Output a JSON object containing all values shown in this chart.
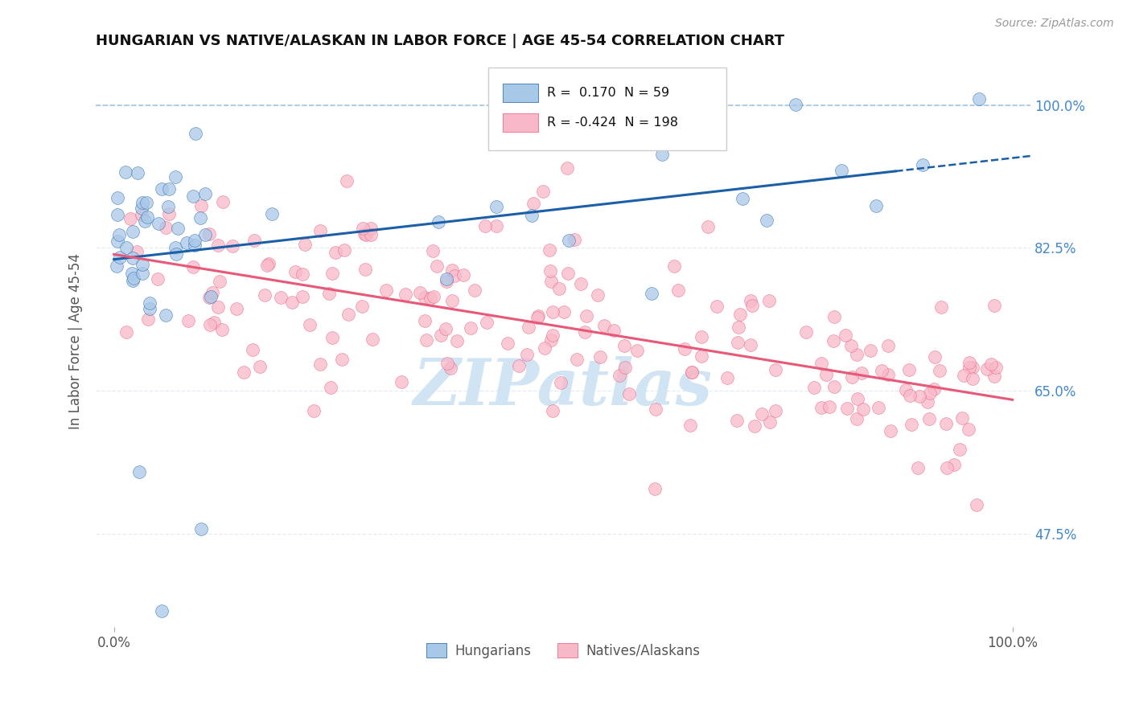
{
  "title": "HUNGARIAN VS NATIVE/ALASKAN IN LABOR FORCE | AGE 45-54 CORRELATION CHART",
  "source": "Source: ZipAtlas.com",
  "ylabel": "In Labor Force | Age 45-54",
  "xlim": [
    -0.02,
    1.02
  ],
  "ylim": [
    0.36,
    1.06
  ],
  "yticks": [
    0.475,
    0.65,
    0.825,
    1.0
  ],
  "ytick_labels": [
    "47.5%",
    "65.0%",
    "82.5%",
    "100.0%"
  ],
  "xtick_labels": [
    "0.0%",
    "100.0%"
  ],
  "xticks": [
    0.0,
    1.0
  ],
  "legend_blue_R": "0.170",
  "legend_blue_N": "59",
  "legend_pink_R": "-0.424",
  "legend_pink_N": "198",
  "blue_color": "#a8c8e8",
  "pink_color": "#f8b8c8",
  "blue_line_color": "#1a5fa8",
  "pink_line_color": "#e85878",
  "dashed_line_color": "#90b8d8",
  "background_color": "#ffffff",
  "title_color": "#111111",
  "tick_label_color_right": "#4488cc",
  "watermark_color": "#d0e4f4",
  "watermark_text": "ZIPatlas",
  "grid_color": "#e0e8f0",
  "blue_trend_x0": 0.0,
  "blue_trend_y0": 0.828,
  "blue_trend_x1": 1.0,
  "blue_trend_y1": 0.938,
  "pink_trend_x0": 0.0,
  "pink_trend_y0": 0.815,
  "pink_trend_x1": 1.0,
  "pink_trend_y1": 0.648
}
